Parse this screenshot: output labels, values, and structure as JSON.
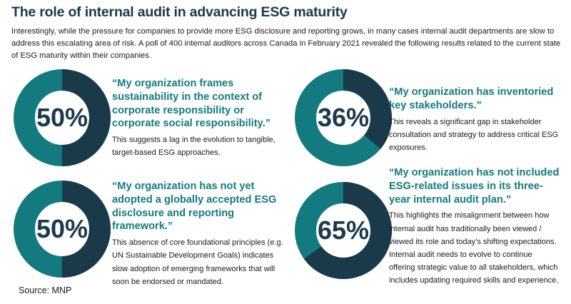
{
  "header": {
    "title": "The role of internal audit in advancing ESG maturity",
    "intro": "Interestingly, while the pressure for companies to provide more ESG disclosure and reporting grows, in many cases internal audit departments are slow to address this escalating area of risk. A poll  of 400 internal auditors across Canada in February 2021 revealed the following results related to the current state of ESG maturity within their companies."
  },
  "colors": {
    "teal": "#137a7f",
    "navy": "#1a3a4a"
  },
  "stats": [
    {
      "percent": "50%",
      "value": 50,
      "quote": "“My organization frames sustainability in the context of corporate responsibility or corporate social responsibility.”",
      "note": "This suggests a lag in the evolution to tangible, target-based ESG approaches."
    },
    {
      "percent": "36%",
      "value": 36,
      "quote": "“My organization has inventoried key stakeholders.”",
      "note": "This reveals a significant gap in stakeholder consultation and strategy to address critical ESG exposures."
    },
    {
      "percent": "50%",
      "value": 50,
      "quote": "“My organization has not yet adopted a globally accepted ESG disclosure and reporting framework.”",
      "note": "This absence of core foundational principles (e.g. UN Sustainable Development Goals) indicates slow adoption of emerging frameworks that will soon be endorsed or mandated."
    },
    {
      "percent": "65%",
      "value": 65,
      "quote": "“My organization has not included ESG-related issues in its three-year internal audit plan.”",
      "note": "This highlights the misalignment between how internal audit has traditionally been viewed / viewed its role and today’s shifting expectations. Internal audit needs to evolve to continue offering strategic value to all stakeholders, which includes updating required skills and experience."
    }
  ],
  "footer": {
    "source": "Source: MNP"
  }
}
